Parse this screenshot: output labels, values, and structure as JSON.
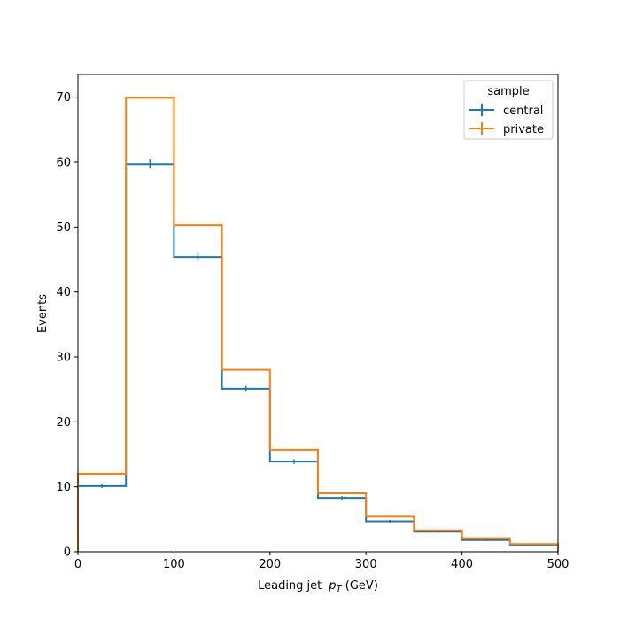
{
  "chart_data": {
    "type": "histogram-step",
    "xlabel_prefix": "Leading jet",
    "xlabel_var": "p",
    "xlabel_sub": "T",
    "xlabel_suffix": " (GeV)",
    "ylabel": "Events",
    "xlim": [
      0,
      500
    ],
    "ylim": [
      0,
      73.5
    ],
    "xticks": [
      0,
      100,
      200,
      300,
      400,
      500
    ],
    "yticks": [
      0,
      10,
      20,
      30,
      40,
      50,
      60,
      70
    ],
    "bin_edges": [
      0,
      50,
      100,
      150,
      200,
      250,
      300,
      350,
      400,
      450,
      500
    ],
    "grid": false,
    "legend": {
      "title": "sample",
      "placement": "top-right"
    },
    "series": [
      {
        "name": "central",
        "color": "#1f77b4",
        "values": [
          10.1,
          59.7,
          45.4,
          25.1,
          13.9,
          8.3,
          4.7,
          3.1,
          1.8,
          1.0
        ],
        "errors": [
          0.3,
          0.7,
          0.6,
          0.45,
          0.35,
          0.3,
          0.22,
          0.18,
          0.14,
          0.1
        ]
      },
      {
        "name": "private",
        "color": "#ff7f0e",
        "values": [
          12.0,
          69.9,
          50.3,
          28.0,
          15.7,
          9.0,
          5.4,
          3.3,
          2.1,
          1.2
        ],
        "errors": [
          0.0,
          0.0,
          0.0,
          0.0,
          0.0,
          0.0,
          0.0,
          0.0,
          0.0,
          0.0
        ]
      }
    ]
  }
}
